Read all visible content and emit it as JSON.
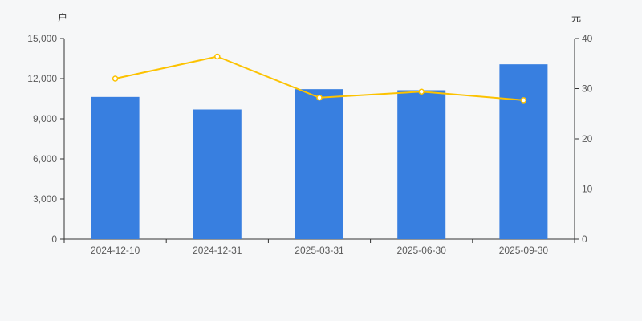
{
  "chart_data": {
    "type": "bar",
    "subtype": "bar-with-line-overlay",
    "title": "",
    "categories": [
      "2024-12-10",
      "2024-12-31",
      "2025-03-31",
      "2025-06-30",
      "2025-09-30"
    ],
    "series": [
      {
        "name": "holder-count-bars",
        "type": "bar",
        "axis": "left",
        "values": [
          10630,
          9690,
          11210,
          11130,
          13070
        ],
        "color": "#387fe0"
      },
      {
        "name": "price-line",
        "type": "line",
        "axis": "right",
        "values": [
          32.0,
          36.4,
          28.2,
          29.4,
          27.7
        ],
        "color": "#fcc200",
        "marker": "hollow-circle",
        "marker_fill": "#ffffff"
      }
    ],
    "left_axis": {
      "label": "户",
      "min": 0,
      "max": 15000,
      "tick_labels": [
        "0",
        "3,000",
        "6,000",
        "9,000",
        "12,000",
        "15,000"
      ]
    },
    "right_axis": {
      "label": "元",
      "min": 0,
      "max": 40,
      "tick_labels": [
        "0",
        "10",
        "20",
        "30",
        "40"
      ]
    },
    "grid": false,
    "legend": "none",
    "colors": {
      "background": "#f6f7f8",
      "axis_line": "#333333",
      "tick_text": "#5a5a5a",
      "axis_title_text": "#333333"
    }
  }
}
